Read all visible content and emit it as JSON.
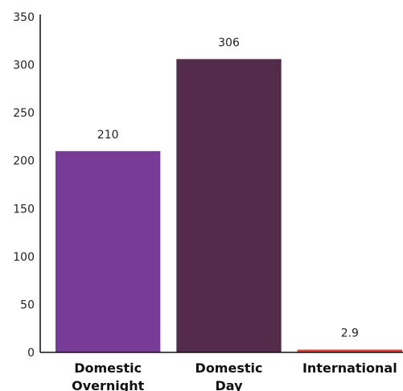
{
  "chart_data": {
    "type": "bar",
    "title": "",
    "xlabel": "",
    "ylabel": "",
    "categories": [
      {
        "lines": [
          "Domestic",
          "Overnight"
        ],
        "label": "Domestic Overnight"
      },
      {
        "lines": [
          "Domestic",
          "Day"
        ],
        "label": "Domestic Day"
      },
      {
        "lines": [
          "International"
        ],
        "label": "International"
      }
    ],
    "values": [
      210,
      306,
      2.9
    ],
    "value_labels": [
      "210",
      "306",
      "2.9"
    ],
    "bar_colors": [
      "#773c96",
      "#532c4b",
      "#d9473c"
    ],
    "ylim": [
      0,
      350
    ],
    "yticks": [
      0,
      50,
      100,
      150,
      200,
      250,
      300,
      350
    ],
    "ytick_labels": [
      "0",
      "50",
      "100",
      "150",
      "200",
      "250",
      "300",
      "350"
    ],
    "grid": false,
    "legend": "none"
  }
}
